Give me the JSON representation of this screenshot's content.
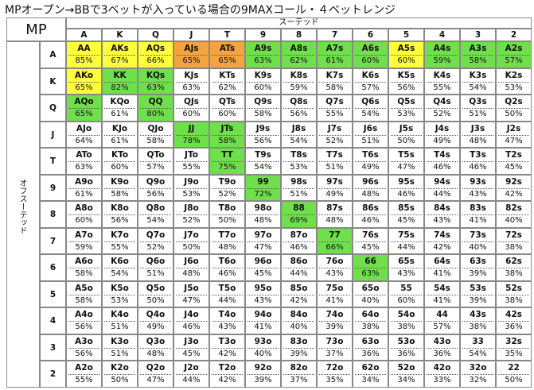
{
  "title": "MPオープン→BBで3ベットが入っている場合の9MAXコール・４ベットレンジ",
  "corner": "MP",
  "suited_label": "スーテッド",
  "offsuit_label": "オフスーテッド",
  "columns": [
    "A",
    "K",
    "Q",
    "J",
    "T",
    "9",
    "8",
    "7",
    "6",
    "5",
    "4",
    "3",
    "2"
  ],
  "rows": [
    {
      "label": "A",
      "cells": [
        {
          "hand": "AA",
          "pct": "85%",
          "color": "#ffff3c"
        },
        {
          "hand": "AKs",
          "pct": "67%",
          "color": "#ffff3c"
        },
        {
          "hand": "AQs",
          "pct": "66%",
          "color": "#ffff3c"
        },
        {
          "hand": "AJs",
          "pct": "65%",
          "color": "#f5a33f"
        },
        {
          "hand": "ATs",
          "pct": "65%",
          "color": "#f5a33f"
        },
        {
          "hand": "A9s",
          "pct": "63%",
          "color": "#6fe04c"
        },
        {
          "hand": "A8s",
          "pct": "62%",
          "color": "#6fe04c"
        },
        {
          "hand": "A7s",
          "pct": "61%",
          "color": "#6fe04c"
        },
        {
          "hand": "A6s",
          "pct": "60%",
          "color": "#6fe04c"
        },
        {
          "hand": "A5s",
          "pct": "60%",
          "color": "#ffff3c"
        },
        {
          "hand": "A4s",
          "pct": "59%",
          "color": "#6fe04c"
        },
        {
          "hand": "A3s",
          "pct": "58%",
          "color": "#6fe04c"
        },
        {
          "hand": "A2s",
          "pct": "57%",
          "color": "#6fe04c"
        }
      ]
    },
    {
      "label": "K",
      "cells": [
        {
          "hand": "AKo",
          "pct": "65%",
          "color": "#ffff3c"
        },
        {
          "hand": "KK",
          "pct": "82%",
          "color": "#6fe04c"
        },
        {
          "hand": "KQs",
          "pct": "63%",
          "color": "#6fe04c"
        },
        {
          "hand": "KJs",
          "pct": "63%"
        },
        {
          "hand": "KTs",
          "pct": "62%"
        },
        {
          "hand": "K9s",
          "pct": "60%"
        },
        {
          "hand": "K8s",
          "pct": "59%"
        },
        {
          "hand": "K7s",
          "pct": "58%"
        },
        {
          "hand": "K6s",
          "pct": "57%"
        },
        {
          "hand": "K5s",
          "pct": "56%"
        },
        {
          "hand": "K4s",
          "pct": "55%"
        },
        {
          "hand": "K3s",
          "pct": "54%"
        },
        {
          "hand": "K2s",
          "pct": "53%"
        }
      ]
    },
    {
      "label": "Q",
      "cells": [
        {
          "hand": "AQo",
          "pct": "65%",
          "color": "#6fe04c"
        },
        {
          "hand": "KQo",
          "pct": "61%"
        },
        {
          "hand": "QQ",
          "pct": "80%",
          "color": "#6fe04c"
        },
        {
          "hand": "QJs",
          "pct": "60%"
        },
        {
          "hand": "QTs",
          "pct": "60%"
        },
        {
          "hand": "Q9s",
          "pct": "58%"
        },
        {
          "hand": "Q8s",
          "pct": "56%"
        },
        {
          "hand": "Q7s",
          "pct": "55%"
        },
        {
          "hand": "Q6s",
          "pct": "54%"
        },
        {
          "hand": "Q5s",
          "pct": "53%"
        },
        {
          "hand": "Q4s",
          "pct": "52%"
        },
        {
          "hand": "Q3s",
          "pct": "51%"
        },
        {
          "hand": "Q2s",
          "pct": "50%"
        }
      ]
    },
    {
      "label": "J",
      "cells": [
        {
          "hand": "AJo",
          "pct": "64%"
        },
        {
          "hand": "KJo",
          "pct": "61%"
        },
        {
          "hand": "QJo",
          "pct": "58%"
        },
        {
          "hand": "JJ",
          "pct": "78%",
          "color": "#6fe04c"
        },
        {
          "hand": "JTs",
          "pct": "58%",
          "color": "#6fe04c"
        },
        {
          "hand": "J9s",
          "pct": "56%"
        },
        {
          "hand": "J8s",
          "pct": "54%"
        },
        {
          "hand": "J7s",
          "pct": "52%"
        },
        {
          "hand": "J6s",
          "pct": "51%"
        },
        {
          "hand": "J5s",
          "pct": "50%"
        },
        {
          "hand": "J4s",
          "pct": "49%"
        },
        {
          "hand": "J3s",
          "pct": "48%"
        },
        {
          "hand": "J2s",
          "pct": "47%"
        }
      ]
    },
    {
      "label": "T",
      "cells": [
        {
          "hand": "ATo",
          "pct": "63%"
        },
        {
          "hand": "KTo",
          "pct": "60%"
        },
        {
          "hand": "QTo",
          "pct": "57%"
        },
        {
          "hand": "JTo",
          "pct": "55%"
        },
        {
          "hand": "TT",
          "pct": "75%",
          "color": "#6fe04c"
        },
        {
          "hand": "T9s",
          "pct": "54%"
        },
        {
          "hand": "T8s",
          "pct": "53%"
        },
        {
          "hand": "T7s",
          "pct": "51%"
        },
        {
          "hand": "T6s",
          "pct": "49%"
        },
        {
          "hand": "T5s",
          "pct": "47%"
        },
        {
          "hand": "T4s",
          "pct": "46%"
        },
        {
          "hand": "T3s",
          "pct": "46%"
        },
        {
          "hand": "T2s",
          "pct": "45%"
        }
      ]
    },
    {
      "label": "9",
      "cells": [
        {
          "hand": "A9o",
          "pct": "61%"
        },
        {
          "hand": "K9o",
          "pct": "58%"
        },
        {
          "hand": "Q9o",
          "pct": "56%"
        },
        {
          "hand": "J9o",
          "pct": "53%"
        },
        {
          "hand": "T9o",
          "pct": "52%"
        },
        {
          "hand": "99",
          "pct": "72%",
          "color": "#6fe04c"
        },
        {
          "hand": "98s",
          "pct": "51%"
        },
        {
          "hand": "97s",
          "pct": "49%"
        },
        {
          "hand": "96s",
          "pct": "48%"
        },
        {
          "hand": "95s",
          "pct": "46%"
        },
        {
          "hand": "94s",
          "pct": "44%"
        },
        {
          "hand": "93s",
          "pct": "43%"
        },
        {
          "hand": "92s",
          "pct": "42%"
        }
      ]
    },
    {
      "label": "8",
      "cells": [
        {
          "hand": "A8o",
          "pct": "60%"
        },
        {
          "hand": "K8o",
          "pct": "56%"
        },
        {
          "hand": "Q8o",
          "pct": "54%"
        },
        {
          "hand": "J8o",
          "pct": "52%"
        },
        {
          "hand": "T8o",
          "pct": "50%"
        },
        {
          "hand": "98o",
          "pct": "48%"
        },
        {
          "hand": "88",
          "pct": "69%",
          "color": "#6fe04c"
        },
        {
          "hand": "87s",
          "pct": "48%"
        },
        {
          "hand": "86s",
          "pct": "46%"
        },
        {
          "hand": "85s",
          "pct": "45%"
        },
        {
          "hand": "84s",
          "pct": "43%"
        },
        {
          "hand": "83s",
          "pct": "41%"
        },
        {
          "hand": "82s",
          "pct": "40%"
        }
      ]
    },
    {
      "label": "7",
      "cells": [
        {
          "hand": "A7o",
          "pct": "59%"
        },
        {
          "hand": "K7o",
          "pct": "55%"
        },
        {
          "hand": "Q7o",
          "pct": "52%"
        },
        {
          "hand": "J7o",
          "pct": "50%"
        },
        {
          "hand": "T7o",
          "pct": "48%"
        },
        {
          "hand": "97o",
          "pct": "47%"
        },
        {
          "hand": "87o",
          "pct": "46%"
        },
        {
          "hand": "77",
          "pct": "66%",
          "color": "#6fe04c"
        },
        {
          "hand": "76s",
          "pct": "45%"
        },
        {
          "hand": "75s",
          "pct": "44%"
        },
        {
          "hand": "74s",
          "pct": "42%"
        },
        {
          "hand": "73s",
          "pct": "40%"
        },
        {
          "hand": "72s",
          "pct": "38%"
        }
      ]
    },
    {
      "label": "6",
      "cells": [
        {
          "hand": "A6o",
          "pct": "58%"
        },
        {
          "hand": "K6o",
          "pct": "54%"
        },
        {
          "hand": "Q6o",
          "pct": "51%"
        },
        {
          "hand": "J6o",
          "pct": "48%"
        },
        {
          "hand": "T6o",
          "pct": "46%"
        },
        {
          "hand": "96o",
          "pct": "45%"
        },
        {
          "hand": "86o",
          "pct": "44%"
        },
        {
          "hand": "76o",
          "pct": "43%"
        },
        {
          "hand": "66",
          "pct": "63%",
          "color": "#6fe04c"
        },
        {
          "hand": "65s",
          "pct": "43%"
        },
        {
          "hand": "64s",
          "pct": "41%"
        },
        {
          "hand": "63s",
          "pct": "39%"
        },
        {
          "hand": "62s",
          "pct": "38%"
        }
      ]
    },
    {
      "label": "5",
      "cells": [
        {
          "hand": "A5o",
          "pct": "58%"
        },
        {
          "hand": "K5o",
          "pct": "53%"
        },
        {
          "hand": "Q5o",
          "pct": "50%"
        },
        {
          "hand": "J5o",
          "pct": "47%"
        },
        {
          "hand": "T5o",
          "pct": "44%"
        },
        {
          "hand": "95o",
          "pct": "43%"
        },
        {
          "hand": "85o",
          "pct": "42%"
        },
        {
          "hand": "75o",
          "pct": "41%"
        },
        {
          "hand": "65o",
          "pct": "40%"
        },
        {
          "hand": "55",
          "pct": "60%"
        },
        {
          "hand": "54s",
          "pct": "41%"
        },
        {
          "hand": "53s",
          "pct": "39%"
        },
        {
          "hand": "52s",
          "pct": "38%"
        }
      ]
    },
    {
      "label": "4",
      "cells": [
        {
          "hand": "A4o",
          "pct": "56%"
        },
        {
          "hand": "K4o",
          "pct": "51%"
        },
        {
          "hand": "Q4o",
          "pct": "49%"
        },
        {
          "hand": "J4o",
          "pct": "46%"
        },
        {
          "hand": "T4o",
          "pct": "43%"
        },
        {
          "hand": "94o",
          "pct": "41%"
        },
        {
          "hand": "84o",
          "pct": "40%"
        },
        {
          "hand": "74o",
          "pct": "39%"
        },
        {
          "hand": "64o",
          "pct": "38%"
        },
        {
          "hand": "54o",
          "pct": "38%"
        },
        {
          "hand": "44",
          "pct": "57%"
        },
        {
          "hand": "43s",
          "pct": "38%"
        },
        {
          "hand": "42s",
          "pct": "36%"
        }
      ]
    },
    {
      "label": "3",
      "cells": [
        {
          "hand": "A3o",
          "pct": "56%"
        },
        {
          "hand": "K3o",
          "pct": "51%"
        },
        {
          "hand": "Q3o",
          "pct": "48%"
        },
        {
          "hand": "J3o",
          "pct": "45%"
        },
        {
          "hand": "T3o",
          "pct": "42%"
        },
        {
          "hand": "93o",
          "pct": "40%"
        },
        {
          "hand": "83o",
          "pct": "39%"
        },
        {
          "hand": "73o",
          "pct": "37%"
        },
        {
          "hand": "63o",
          "pct": "36%"
        },
        {
          "hand": "53o",
          "pct": "36%"
        },
        {
          "hand": "43o",
          "pct": "36%"
        },
        {
          "hand": "33",
          "pct": "54%"
        },
        {
          "hand": "32s",
          "pct": "35%"
        }
      ]
    },
    {
      "label": "2",
      "cells": [
        {
          "hand": "A2o",
          "pct": "55%"
        },
        {
          "hand": "K2o",
          "pct": "50%"
        },
        {
          "hand": "Q2o",
          "pct": "47%"
        },
        {
          "hand": "J2o",
          "pct": "44%"
        },
        {
          "hand": "T2o",
          "pct": "42%"
        },
        {
          "hand": "92o",
          "pct": "39%"
        },
        {
          "hand": "82o",
          "pct": "37%"
        },
        {
          "hand": "72o",
          "pct": "35%"
        },
        {
          "hand": "62o",
          "pct": "34%"
        },
        {
          "hand": "52o",
          "pct": "34%"
        },
        {
          "hand": "42o",
          "pct": "33%"
        },
        {
          "hand": "32o",
          "pct": "32%"
        },
        {
          "hand": "22",
          "pct": "50%"
        }
      ]
    }
  ]
}
